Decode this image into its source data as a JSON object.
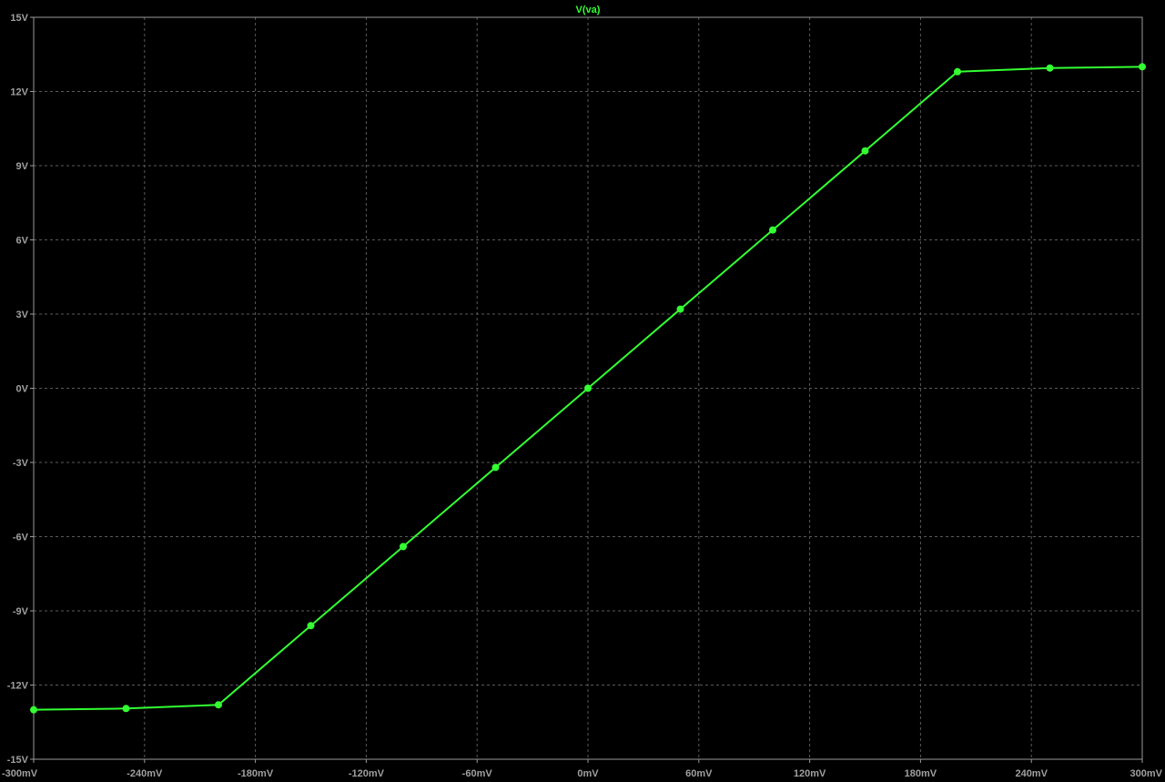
{
  "chart_data": {
    "type": "line",
    "title": "",
    "xlabel": "",
    "ylabel": "",
    "x_unit": "mV",
    "y_unit": "V",
    "xlim": [
      -300,
      300
    ],
    "ylim": [
      -15,
      15
    ],
    "x_ticks": [
      -300,
      -240,
      -180,
      -120,
      -60,
      0,
      60,
      120,
      180,
      240,
      300
    ],
    "y_ticks": [
      15,
      12,
      9,
      6,
      3,
      0,
      -3,
      -6,
      -9,
      -12,
      -15
    ],
    "x_tick_labels": [
      "-300mV",
      "-240mV",
      "-180mV",
      "-120mV",
      "-60mV",
      "0mV",
      "60mV",
      "120mV",
      "180mV",
      "240mV",
      "300mV"
    ],
    "y_tick_labels": [
      "15V",
      "12V",
      "9V",
      "6V",
      "3V",
      "0V",
      "-3V",
      "-6V",
      "-9V",
      "-12V",
      "-15V"
    ],
    "grid": true,
    "legend": "top-center",
    "series": [
      {
        "name": "V(va)",
        "color": "#33ff33",
        "x": [
          -300,
          -250,
          -200,
          -150,
          -100,
          -50,
          0,
          50,
          100,
          150,
          200,
          250,
          300
        ],
        "y": [
          -13.0,
          -12.95,
          -12.8,
          -9.6,
          -6.4,
          -3.2,
          0.0,
          3.2,
          6.4,
          9.6,
          12.8,
          12.95,
          13.0
        ]
      }
    ]
  }
}
